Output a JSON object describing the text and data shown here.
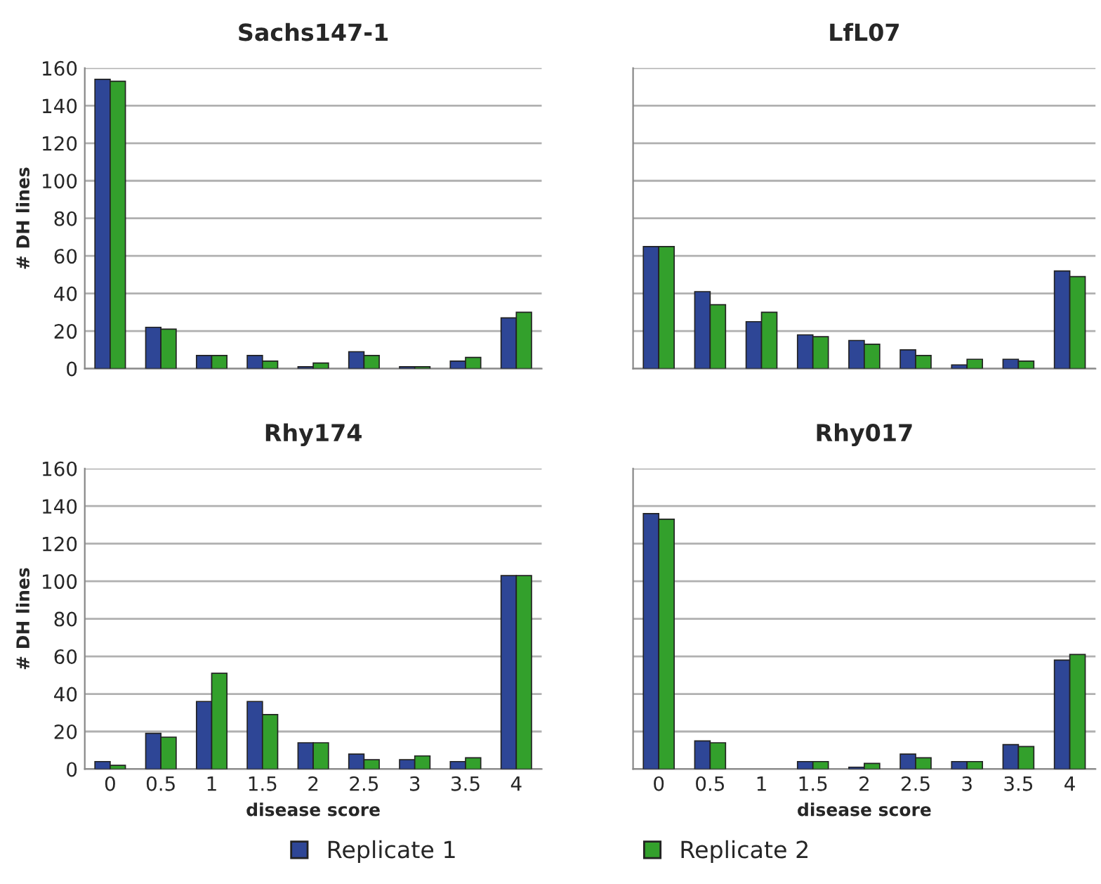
{
  "chart_data": [
    {
      "type": "bar",
      "title": "Sachs147-1",
      "ylabel": "# DH lines",
      "categories": [
        "0",
        "0.5",
        "1",
        "1.5",
        "2",
        "2.5",
        "3",
        "3.5",
        "4"
      ],
      "ylim": [
        0,
        160
      ],
      "yticks": [
        0,
        20,
        40,
        60,
        80,
        100,
        120,
        140,
        160
      ],
      "grid": "y",
      "tick_labels": "y",
      "legend": "bottom",
      "series": [
        {
          "name": "Replicate 1",
          "color": "#2e4696",
          "values": [
            154,
            22,
            7,
            7,
            1,
            9,
            1,
            4,
            27
          ]
        },
        {
          "name": "Replicate 2",
          "color": "#33a02c",
          "values": [
            153,
            21,
            7,
            4,
            3,
            7,
            1,
            6,
            30
          ]
        }
      ]
    },
    {
      "type": "bar",
      "title": "LfL07",
      "categories": [
        "0",
        "0.5",
        "1",
        "1.5",
        "2",
        "2.5",
        "3",
        "3.5",
        "4"
      ],
      "ylim": [
        0,
        160
      ],
      "yticks": [
        0,
        20,
        40,
        60,
        80,
        100,
        120,
        140,
        160
      ],
      "grid": "y",
      "tick_labels": false,
      "series": [
        {
          "color": "#2e4696",
          "values": [
            65,
            41,
            25,
            18,
            15,
            10,
            2,
            5,
            52
          ]
        },
        {
          "color": "#33a02c",
          "values": [
            65,
            34,
            30,
            17,
            13,
            7,
            5,
            4,
            49
          ]
        }
      ]
    },
    {
      "type": "bar",
      "title": "Rhy174",
      "ylabel": "# DH lines",
      "xlabel": "disease score",
      "categories": [
        "0",
        "0.5",
        "1",
        "1.5",
        "2",
        "2.5",
        "3",
        "3.5",
        "4"
      ],
      "ylim": [
        0,
        160
      ],
      "yticks": [
        0,
        20,
        40,
        60,
        80,
        100,
        120,
        140,
        160
      ],
      "grid": "y",
      "series": [
        {
          "color": "#2e4696",
          "values": [
            4,
            19,
            36,
            36,
            14,
            8,
            5,
            4,
            103
          ]
        },
        {
          "color": "#33a02c",
          "values": [
            2,
            17,
            51,
            29,
            14,
            5,
            7,
            6,
            103
          ]
        }
      ]
    },
    {
      "type": "bar",
      "title": "Rhy017",
      "xlabel": "disease score",
      "categories": [
        "0",
        "0.5",
        "1",
        "1.5",
        "2",
        "2.5",
        "3",
        "3.5",
        "4"
      ],
      "ylim": [
        0,
        160
      ],
      "yticks": [
        0,
        20,
        40,
        60,
        80,
        100,
        120,
        140,
        160
      ],
      "grid": "y",
      "tick_labels": "x",
      "series": [
        {
          "color": "#2e4696",
          "values": [
            136,
            15,
            0,
            4,
            1,
            8,
            4,
            13,
            58
          ]
        },
        {
          "color": "#33a02c",
          "values": [
            133,
            14,
            0,
            4,
            3,
            6,
            4,
            12,
            61
          ]
        }
      ]
    }
  ]
}
